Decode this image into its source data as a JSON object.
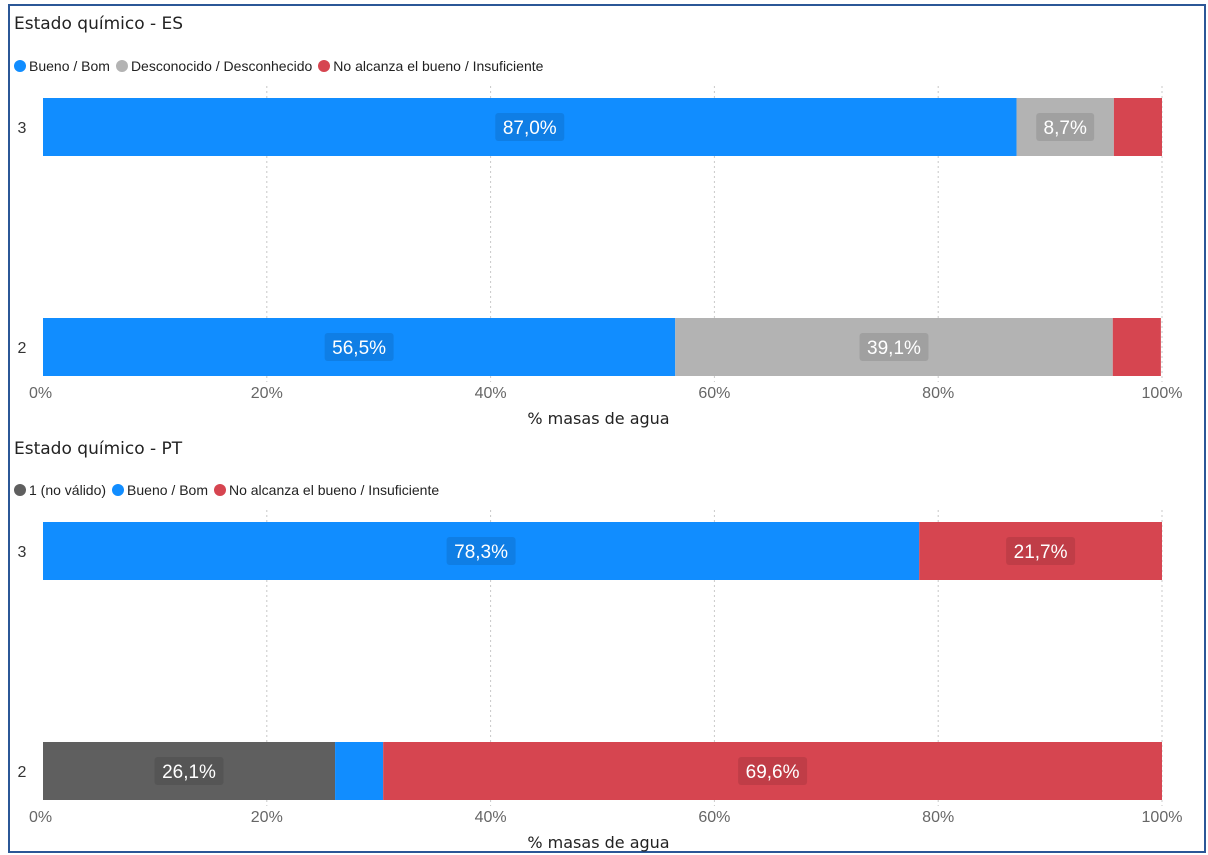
{
  "chart_data": [
    {
      "type": "bar",
      "orientation": "horizontal",
      "stacked": "100%",
      "title": "Estado químico - ES",
      "xlabel": "% masas de agua",
      "ylabel": "",
      "xlim": [
        0,
        100
      ],
      "x_ticks": [
        "0%",
        "20%",
        "40%",
        "60%",
        "80%",
        "100%"
      ],
      "grid": true,
      "legend_position": "top-left",
      "categories": [
        "3",
        "2"
      ],
      "series": [
        {
          "name": "Bueno / Bom",
          "color": "#118dff",
          "values": [
            87.0,
            56.5
          ],
          "labels": [
            "87,0%",
            "56,5%"
          ]
        },
        {
          "name": "Desconocido / Desconhecido",
          "color": "#b3b3b3",
          "values": [
            8.7,
            39.1
          ],
          "labels": [
            "8,7%",
            "39,1%"
          ]
        },
        {
          "name": "No alcanza el bueno / Insuficiente",
          "color": "#d64550",
          "values": [
            4.3,
            4.3
          ],
          "labels": [
            "",
            ""
          ]
        }
      ]
    },
    {
      "type": "bar",
      "orientation": "horizontal",
      "stacked": "100%",
      "title": "Estado químico - PT",
      "xlabel": "% masas de agua",
      "ylabel": "",
      "xlim": [
        0,
        100
      ],
      "x_ticks": [
        "0%",
        "20%",
        "40%",
        "60%",
        "80%",
        "100%"
      ],
      "grid": true,
      "legend_position": "top-left",
      "categories": [
        "3",
        "2"
      ],
      "series": [
        {
          "name": "1 (no válido)",
          "color": "#5f5f5f",
          "values": [
            0,
            26.1
          ],
          "labels": [
            "",
            "26,1%"
          ]
        },
        {
          "name": "Bueno / Bom",
          "color": "#118dff",
          "values": [
            78.3,
            4.3
          ],
          "labels": [
            "78,3%",
            ""
          ]
        },
        {
          "name": "No alcanza el bueno / Insuficiente",
          "color": "#d64550",
          "values": [
            21.7,
            69.6
          ],
          "labels": [
            "21,7%",
            "69,6%"
          ]
        }
      ]
    }
  ]
}
